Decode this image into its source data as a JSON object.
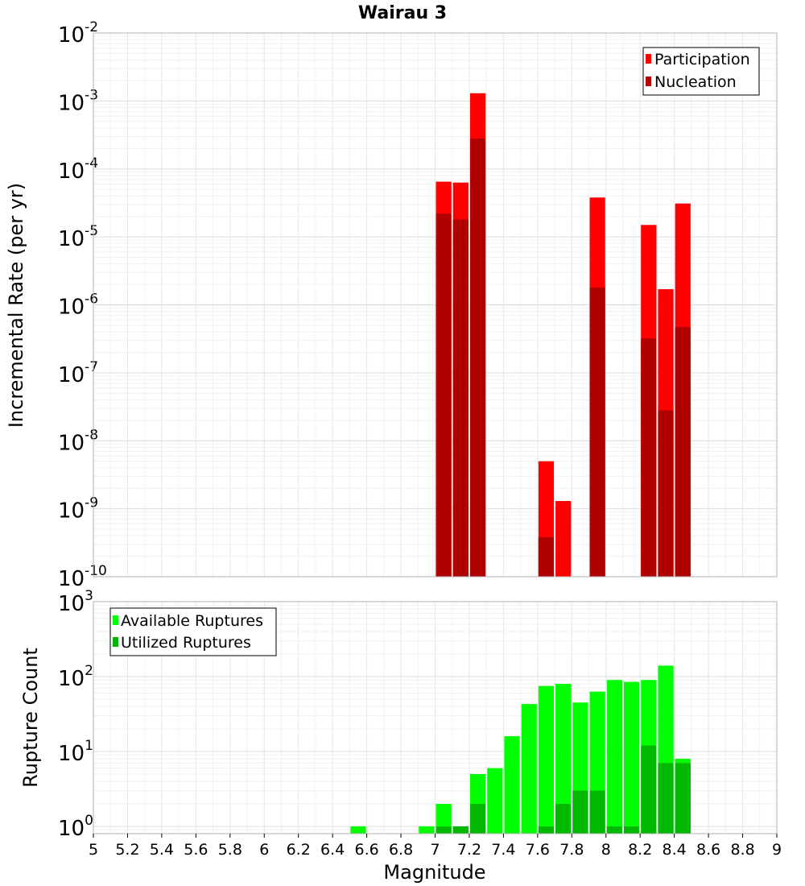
{
  "title": "Wairau 3",
  "chart_data": [
    {
      "type": "bar",
      "title": "Wairau 3",
      "ylabel": "Incremental Rate (per yr)",
      "yscale": "log",
      "ylim": [
        1e-10,
        0.01
      ],
      "xlim": [
        5,
        9
      ],
      "bin_width": 0.1,
      "grid": true,
      "legend_position": "top-right",
      "series": [
        {
          "name": "Participation",
          "color": "#ff0000",
          "x": [
            7.05,
            7.15,
            7.25,
            7.65,
            7.75,
            7.95,
            8.25,
            8.35,
            8.45
          ],
          "values": [
            6.5e-05,
            6.3e-05,
            0.0013,
            5e-09,
            1.3e-09,
            3.8e-05,
            1.5e-05,
            1.7e-06,
            3.1e-05
          ]
        },
        {
          "name": "Nucleation",
          "color": "#b00000",
          "x": [
            7.05,
            7.15,
            7.25,
            7.65,
            7.95,
            8.25,
            8.35,
            8.45
          ],
          "values": [
            2.2e-05,
            1.8e-05,
            0.00028,
            3.8e-10,
            1.8e-06,
            3.2e-07,
            2.8e-08,
            4.7e-07
          ]
        }
      ]
    },
    {
      "type": "bar",
      "xlabel": "Magnitude",
      "ylabel": "Rupture Count",
      "yscale": "log",
      "ylim": [
        0.8,
        1000
      ],
      "xlim": [
        5,
        9
      ],
      "bin_width": 0.1,
      "grid": true,
      "legend_position": "top-left",
      "x_ticks": [
        "5",
        "5.2",
        "5.4",
        "5.6",
        "5.8",
        "6",
        "6.2",
        "6.4",
        "6.6",
        "6.8",
        "7",
        "7.2",
        "7.4",
        "7.6",
        "7.8",
        "8",
        "8.2",
        "8.4",
        "8.6",
        "8.8",
        "9"
      ],
      "series": [
        {
          "name": "Available Ruptures",
          "color": "#00ff00",
          "x": [
            6.55,
            6.95,
            7.05,
            7.15,
            7.25,
            7.35,
            7.45,
            7.55,
            7.65,
            7.75,
            7.85,
            7.95,
            8.05,
            8.15,
            8.25,
            8.35,
            8.45
          ],
          "values": [
            1,
            1,
            2,
            1,
            5,
            6,
            16,
            43,
            75,
            80,
            45,
            63,
            90,
            85,
            90,
            140,
            8
          ]
        },
        {
          "name": "Utilized Ruptures",
          "color": "#00b800",
          "x": [
            7.05,
            7.15,
            7.25,
            7.65,
            7.75,
            7.85,
            7.95,
            8.05,
            8.15,
            8.25,
            8.35,
            8.45
          ],
          "values": [
            1,
            1,
            2,
            1,
            2,
            3,
            3,
            1,
            1,
            12,
            7,
            7
          ]
        }
      ]
    }
  ]
}
